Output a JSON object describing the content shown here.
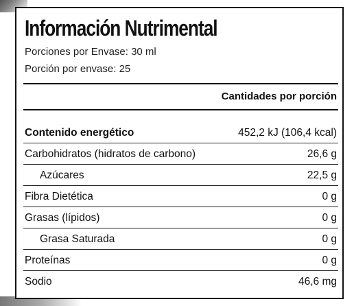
{
  "label": {
    "title": "Información Nutrimental",
    "servings_per_container": "Porciones por Envase: 30 ml",
    "serving_per_container": "Porción por envase: 25",
    "column_header": "Cantidades por porción",
    "rows": [
      {
        "name": "Contenido energético",
        "value": "452,2 kJ (106,4 kcal)"
      },
      {
        "name": "Carbohidratos (hidratos de carbono)",
        "value": "26,6 g"
      },
      {
        "name": "Azúcares",
        "value": "22,5 g"
      },
      {
        "name": "Fibra Dietética",
        "value": "0 g"
      },
      {
        "name": "Grasas (lípidos)",
        "value": "0 g"
      },
      {
        "name": "Grasa Saturada",
        "value": "0 g"
      },
      {
        "name": "Proteínas",
        "value": "0 g"
      },
      {
        "name": "Sodio",
        "value": "46,6 mg"
      }
    ]
  }
}
